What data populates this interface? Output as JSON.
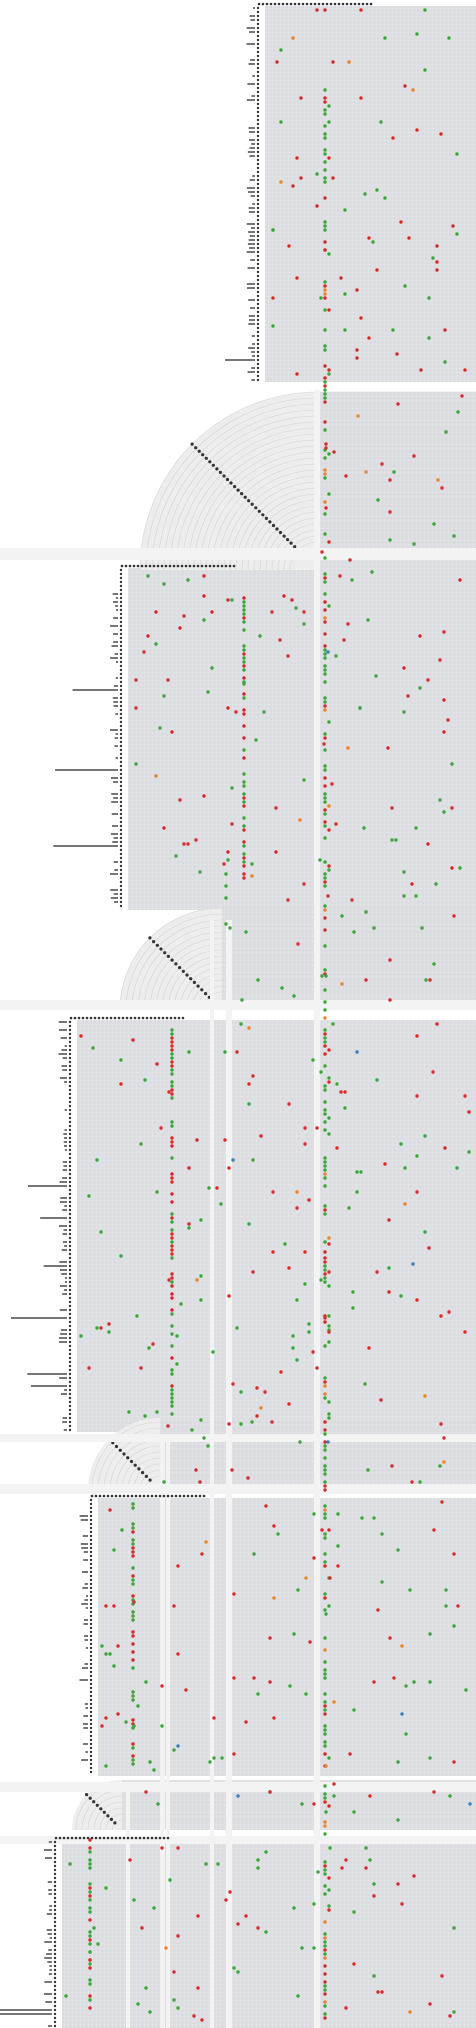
{
  "figure": {
    "background": "#ffffff",
    "panel_color": "#dcdde0",
    "grid_color": "#eeeeef",
    "arc_color": "#d4d4d6",
    "band_color": "#f3f3f4",
    "tick_color": "#333333",
    "bar_color": "#555555",
    "dot_colors": {
      "green": "#3aa53a",
      "red": "#d42b2b",
      "orange": "#e8852a",
      "blue": "#3a7fb8"
    }
  }
}
